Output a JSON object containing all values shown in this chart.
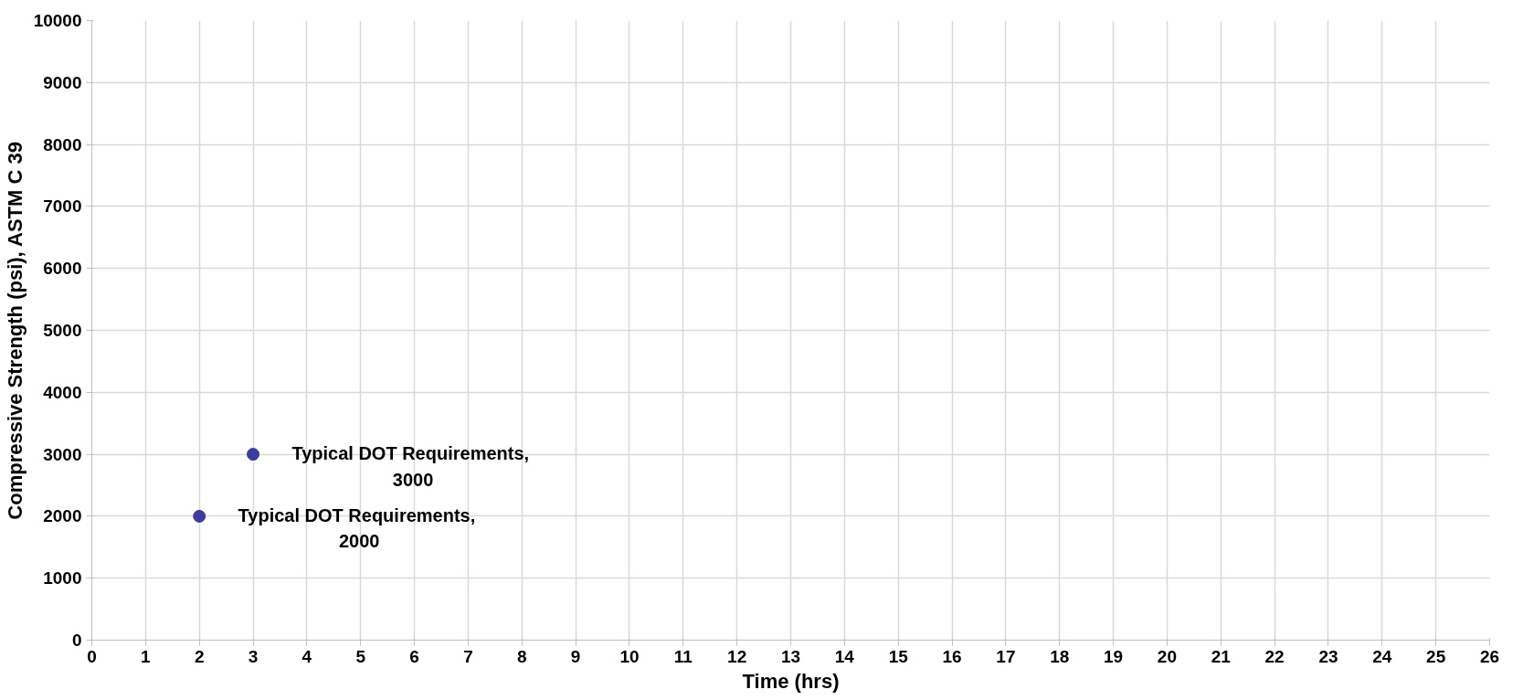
{
  "chart_data": {
    "type": "scatter",
    "xlabel": "Time (hrs)",
    "ylabel": "Compressive Strength (psi), ASTM C 39",
    "x": [
      2,
      3
    ],
    "values": [
      2000,
      3000
    ],
    "color": "#3c3c9c",
    "marker": "circle",
    "grid": true,
    "xlim": [
      0,
      26
    ],
    "xticks": [
      0,
      1,
      2,
      3,
      4,
      5,
      6,
      7,
      8,
      9,
      10,
      11,
      12,
      13,
      14,
      15,
      16,
      17,
      18,
      19,
      20,
      21,
      22,
      23,
      24,
      25,
      26
    ],
    "ylim": [
      0,
      10000
    ],
    "yticks": [
      0,
      1000,
      2000,
      3000,
      4000,
      5000,
      6000,
      7000,
      8000,
      9000,
      10000
    ],
    "value_labels": [
      "Typical DOT  Requirements,\n2000",
      "Typical DOT  Requirements,\n3000"
    ]
  }
}
